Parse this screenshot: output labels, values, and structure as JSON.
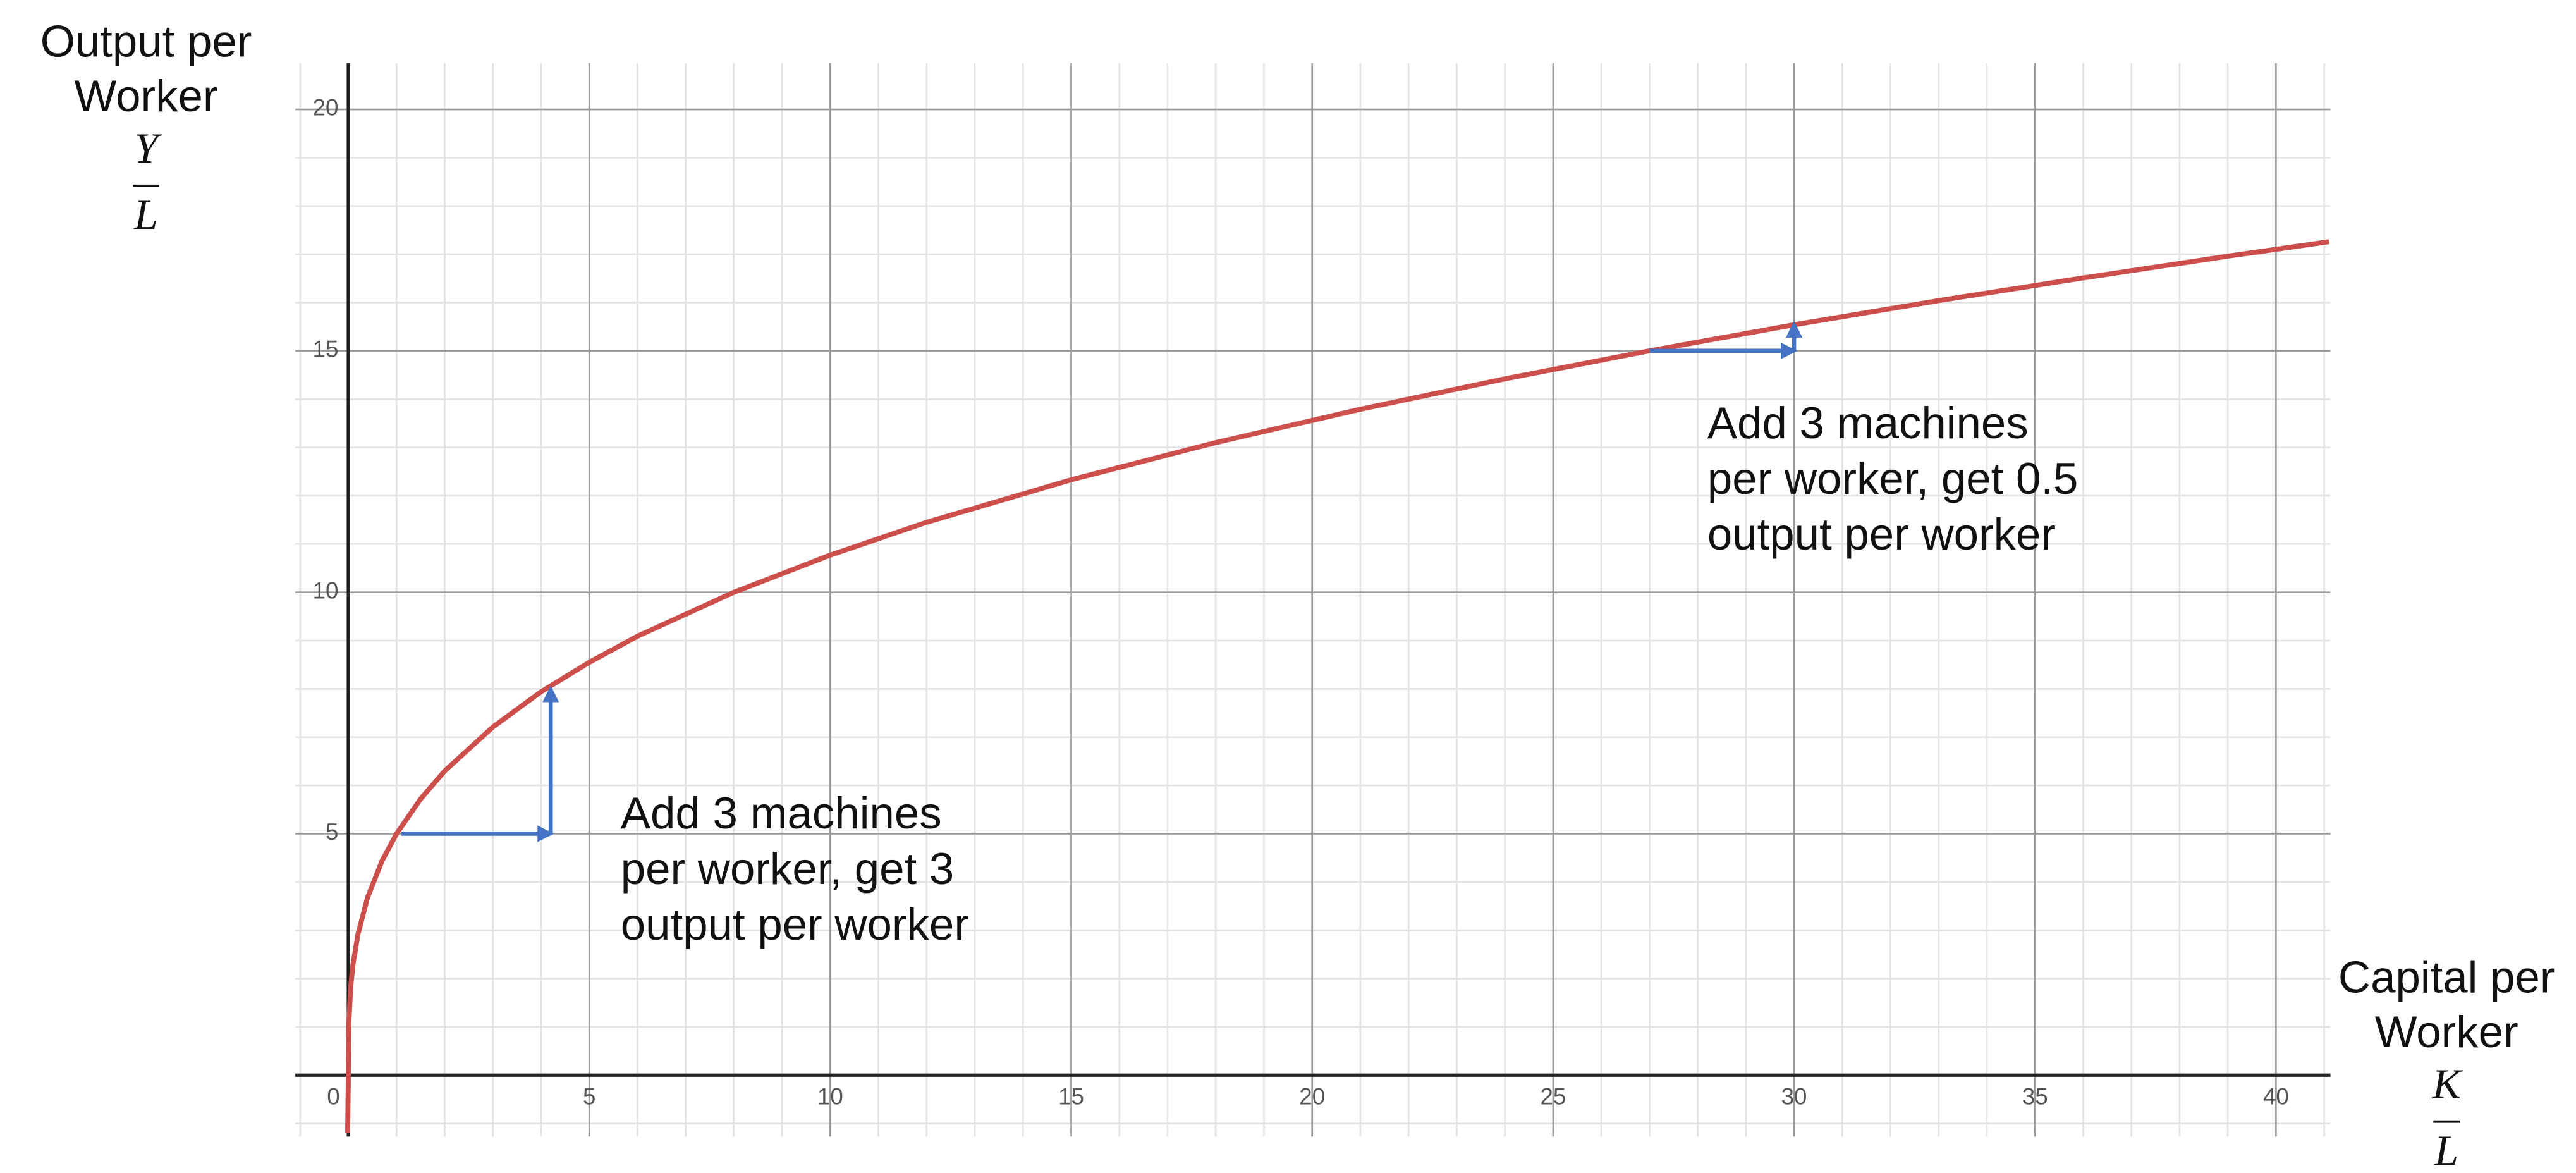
{
  "chart_data": {
    "type": "line",
    "x_label": {
      "lines": [
        "Capital per",
        "Worker"
      ],
      "numerator": "K",
      "denominator": "L"
    },
    "y_label": {
      "lines": [
        "Output per",
        "Worker"
      ],
      "numerator": "Y",
      "denominator": "L"
    },
    "x": [
      -0.014,
      0,
      0.01,
      0.05,
      0.1,
      0.2,
      0.4,
      0.7,
      1,
      1.5,
      2,
      3,
      4,
      5,
      6,
      8,
      10,
      12,
      15,
      18,
      21,
      24,
      27,
      30,
      33,
      36,
      39,
      41.1
    ],
    "series": [
      {
        "color": "#cc4f4c",
        "values": [
          -1.2,
          0,
          1.08,
          1.84,
          2.32,
          2.92,
          3.68,
          4.44,
          5,
          5.72,
          6.3,
          7.21,
          7.94,
          8.55,
          9.09,
          10,
          10.77,
          11.45,
          12.33,
          13.1,
          13.79,
          14.42,
          15,
          15.54,
          16.04,
          16.51,
          16.96,
          17.26
        ]
      }
    ],
    "xlim": [
      -1.1,
      41.13
    ],
    "ylim": [
      -1.27,
      20.96
    ],
    "xticks": [
      0,
      5,
      10,
      15,
      20,
      25,
      30,
      35,
      40
    ],
    "yticks": [
      5,
      10,
      15,
      20
    ],
    "grid": true,
    "arrow_color": "#4472c4",
    "arrows": [
      {
        "from": [
          1.1,
          5
        ],
        "to": [
          4.2,
          5
        ]
      },
      {
        "from": [
          4.2,
          5
        ],
        "to": [
          4.2,
          8
        ]
      },
      {
        "from": [
          27,
          15
        ],
        "to": [
          30,
          15
        ]
      },
      {
        "from": [
          30,
          15
        ],
        "to": [
          30,
          15.55
        ]
      }
    ],
    "annotations": [
      {
        "x": 5.65,
        "y": 5.36,
        "lines": [
          "Add 3 machines",
          "per worker, get 3",
          "output per worker"
        ]
      },
      {
        "x": 28.2,
        "y": 13.44,
        "lines": [
          "Add 3 machines",
          "per worker, get 0.5",
          "output per worker"
        ]
      }
    ]
  }
}
